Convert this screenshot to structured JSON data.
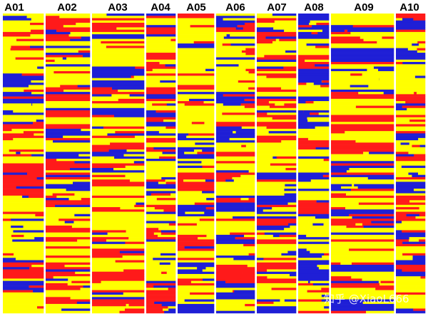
{
  "chart_data": {
    "type": "heatmap",
    "columns": [
      "A01",
      "A02",
      "A03",
      "A04",
      "A05",
      "A06",
      "A07",
      "A08",
      "A09",
      "A10"
    ],
    "row_count": 130,
    "color_states": {
      "yellow": "#ffff00",
      "red": "#ff1a1a",
      "blue": "#1f1fd6"
    },
    "background_color": "#ffffff",
    "column_separator_color": "#ffffff",
    "grid": false,
    "legend": "none"
  },
  "watermark": {
    "text": "知乎 @XiaoL666",
    "color": "#ffffff"
  }
}
